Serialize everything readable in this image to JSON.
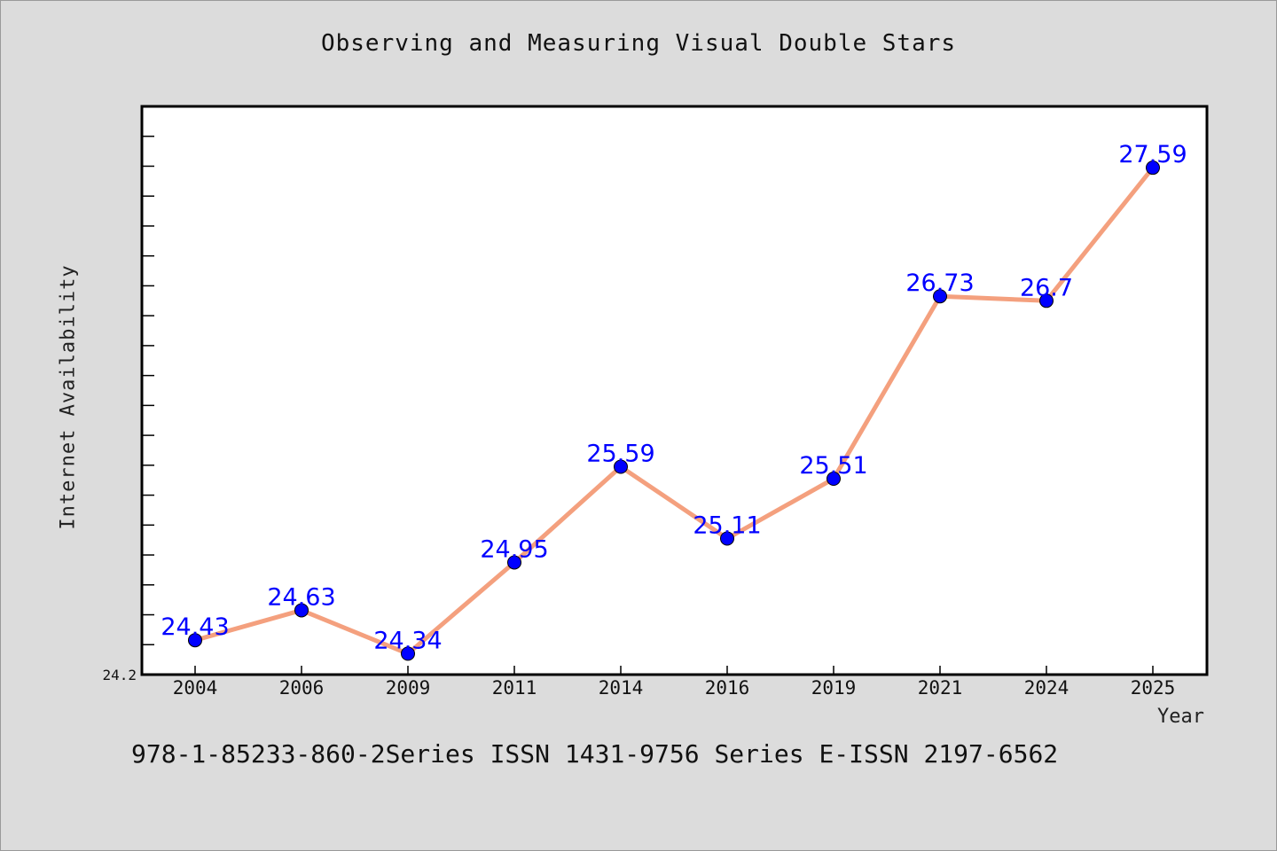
{
  "chart_data": {
    "type": "line",
    "title": "Observing and Measuring Visual Double Stars",
    "xlabel": "Year",
    "ylabel": "Internet Availability",
    "categories": [
      "2004",
      "2006",
      "2009",
      "2011",
      "2014",
      "2016",
      "2019",
      "2021",
      "2024",
      "2025"
    ],
    "series": [
      {
        "values": [
          24.43,
          24.63,
          24.34,
          24.95,
          25.59,
          25.11,
          25.51,
          26.73,
          26.7,
          27.59
        ],
        "line_color": "#f4a07e",
        "marker_color": "#0000ff",
        "label_color": "#0000ff"
      }
    ],
    "data_labels": [
      "24.43",
      "24.63",
      "24.34",
      "24.95",
      "25.59",
      "25.11",
      "25.51",
      "26.73",
      "26.7",
      "27.59"
    ],
    "ylim": [
      24.2,
      28.0
    ],
    "y_tick_labels": [
      "24.2"
    ],
    "grid": false,
    "legend": "none"
  },
  "footer": {
    "note": "978-1-85233-860-2Series ISSN 1431-9756 Series E-ISSN 2197-6562"
  },
  "colors": {
    "background": "#dcdcdc",
    "plot_background": "#ffffff",
    "axis": "#000000"
  }
}
